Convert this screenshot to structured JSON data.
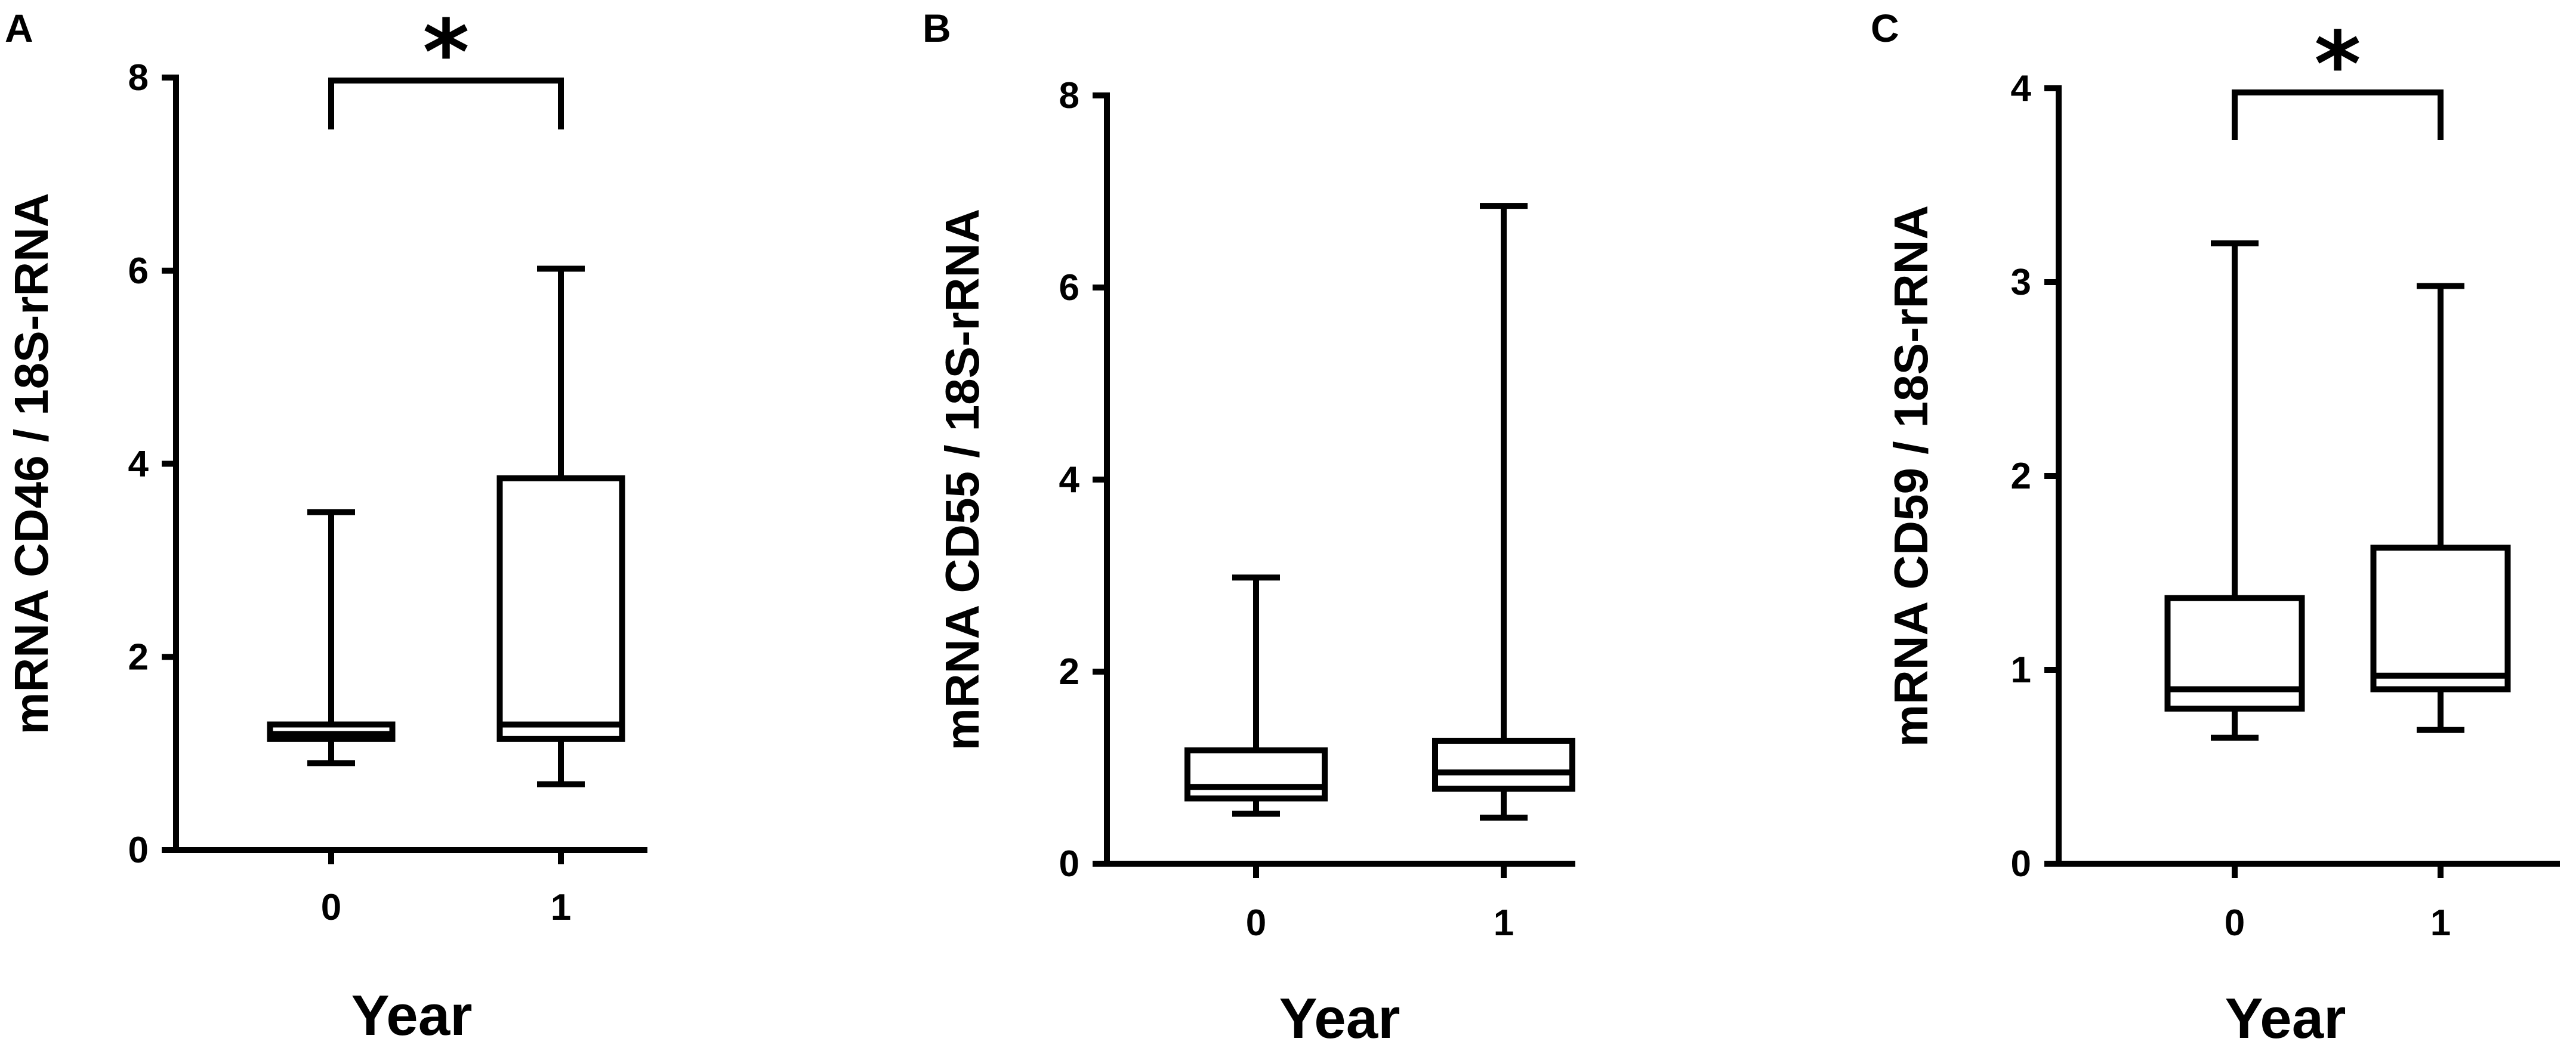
{
  "chart_data": [
    {
      "type": "box",
      "panel": "A",
      "xlabel": "Year",
      "ylabel": "mRNA CD46 / 18S-rRNA",
      "ylim": [
        0,
        8
      ],
      "yticks": [
        "0",
        "2",
        "4",
        "6",
        "8"
      ],
      "categories": [
        "0",
        "1"
      ],
      "boxes": [
        {
          "category": "0",
          "min": 0.9,
          "q1": 1.15,
          "median": 1.2,
          "q3": 1.3,
          "max": 3.5
        },
        {
          "category": "1",
          "min": 0.68,
          "q1": 1.15,
          "median": 1.3,
          "q3": 3.85,
          "max": 6.02
        }
      ],
      "significance": {
        "between": [
          "0",
          "1"
        ],
        "label": "*"
      }
    },
    {
      "type": "box",
      "panel": "B",
      "xlabel": "Year",
      "ylabel": "mRNA CD55 / 18S-rRNA",
      "ylim": [
        0,
        8
      ],
      "yticks": [
        "0",
        "2",
        "4",
        "6",
        "8"
      ],
      "categories": [
        "0",
        "1"
      ],
      "boxes": [
        {
          "category": "0",
          "min": 0.52,
          "q1": 0.68,
          "median": 0.8,
          "q3": 1.18,
          "max": 2.98
        },
        {
          "category": "1",
          "min": 0.48,
          "q1": 0.78,
          "median": 0.95,
          "q3": 1.28,
          "max": 6.85
        }
      ],
      "significance": null
    },
    {
      "type": "box",
      "panel": "C",
      "xlabel": "Year",
      "ylabel": "mRNA CD59 / 18S-rRNA",
      "ylim": [
        0,
        4
      ],
      "yticks": [
        "0",
        "1",
        "2",
        "3",
        "4"
      ],
      "categories": [
        "0",
        "1"
      ],
      "boxes": [
        {
          "category": "0",
          "min": 0.65,
          "q1": 0.8,
          "median": 0.9,
          "q3": 1.37,
          "max": 3.2
        },
        {
          "category": "1",
          "min": 0.69,
          "q1": 0.9,
          "median": 0.97,
          "q3": 1.63,
          "max": 2.98
        }
      ],
      "significance": {
        "between": [
          "0",
          "1"
        ],
        "label": "*"
      }
    }
  ]
}
